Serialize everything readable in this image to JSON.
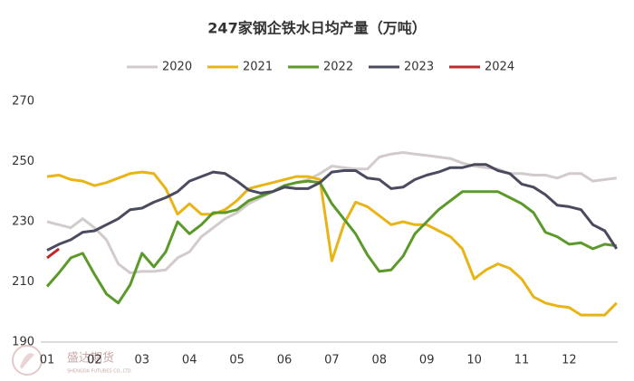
{
  "chart_data": {
    "type": "line",
    "title": "247家钢企铁水日均产量（万吨）",
    "watermark": "盛达期货",
    "watermark_sub": "SHENGDA FUTURES CO.,LTD.",
    "categories": [
      "01",
      null,
      null,
      null,
      "02",
      null,
      null,
      null,
      "03",
      null,
      null,
      null,
      "04",
      null,
      null,
      null,
      "05",
      null,
      null,
      null,
      "06",
      null,
      null,
      null,
      "07",
      null,
      null,
      null,
      "08",
      null,
      null,
      null,
      "09",
      null,
      null,
      null,
      "10",
      null,
      null,
      null,
      "11",
      null,
      null,
      null,
      "12",
      null,
      null,
      null,
      null
    ],
    "ylim": [
      190,
      270
    ],
    "yticks": [
      190,
      210,
      230,
      250,
      270
    ],
    "grid": false,
    "series": [
      {
        "name": "2020",
        "color": "#d3cbcb",
        "values": [
          230,
          229,
          228,
          231,
          228,
          224,
          216,
          213,
          213.5,
          213.5,
          214,
          218,
          220,
          225,
          228,
          231,
          233,
          236,
          238,
          240,
          242,
          243,
          244,
          246,
          248.5,
          248,
          247.5,
          247.5,
          251.5,
          252.5,
          253,
          252.5,
          252,
          251.5,
          251,
          249.5,
          248.5,
          248,
          247.5,
          246,
          246,
          245.5,
          245.5,
          244.5,
          246,
          246,
          243.5,
          244,
          244.5
        ]
      },
      {
        "name": "2021",
        "color": "#e8b416",
        "values": [
          245,
          245.5,
          244,
          243.5,
          242,
          243,
          244.5,
          246,
          246.5,
          246,
          241,
          232.5,
          236,
          232.5,
          232.5,
          234,
          237,
          241,
          242,
          243,
          244,
          245,
          245,
          244,
          217,
          229,
          236.5,
          235,
          232,
          229,
          230,
          229,
          229,
          227,
          225,
          221,
          211,
          214,
          216,
          214.5,
          211,
          205,
          203,
          202,
          201.5,
          199,
          199,
          199,
          203
        ]
      },
      {
        "name": "2022",
        "color": "#5b9a2a",
        "values": [
          208.5,
          213,
          218,
          219.5,
          212.5,
          206,
          203,
          209,
          219.5,
          215,
          220,
          230,
          226,
          229,
          233,
          233,
          234,
          237,
          238.5,
          240,
          242,
          243,
          243.5,
          243,
          236,
          231,
          226,
          219,
          213.5,
          214,
          218.5,
          226,
          230,
          234,
          237,
          240,
          240,
          240,
          240,
          238,
          236,
          233,
          226.5,
          225,
          222.5,
          223,
          221,
          222.5,
          222
        ]
      },
      {
        "name": "2023",
        "color": "#4b4b5f",
        "values": [
          220.5,
          222.5,
          224,
          226.5,
          227,
          229,
          231,
          234,
          234.5,
          236.5,
          238,
          240,
          243.5,
          245,
          246.5,
          246,
          243.5,
          240.5,
          239.5,
          240,
          241.5,
          241,
          241,
          243,
          246.5,
          247,
          247,
          244.5,
          244,
          241,
          241.5,
          244,
          245.5,
          246.5,
          248,
          248,
          249,
          249,
          247,
          246,
          242.5,
          241.5,
          239,
          235.5,
          235,
          234,
          229,
          227,
          221
        ]
      },
      {
        "name": "2024",
        "color": "#c0282a",
        "values": [
          218,
          221,
          null,
          null,
          null,
          null,
          null,
          null,
          null,
          null,
          null,
          null,
          null,
          null,
          null,
          null,
          null,
          null,
          null,
          null,
          null,
          null,
          null,
          null,
          null,
          null,
          null,
          null,
          null,
          null,
          null,
          null,
          null,
          null,
          null,
          null,
          null,
          null,
          null,
          null,
          null,
          null,
          null,
          null,
          null,
          null,
          null,
          null,
          null
        ]
      }
    ]
  }
}
